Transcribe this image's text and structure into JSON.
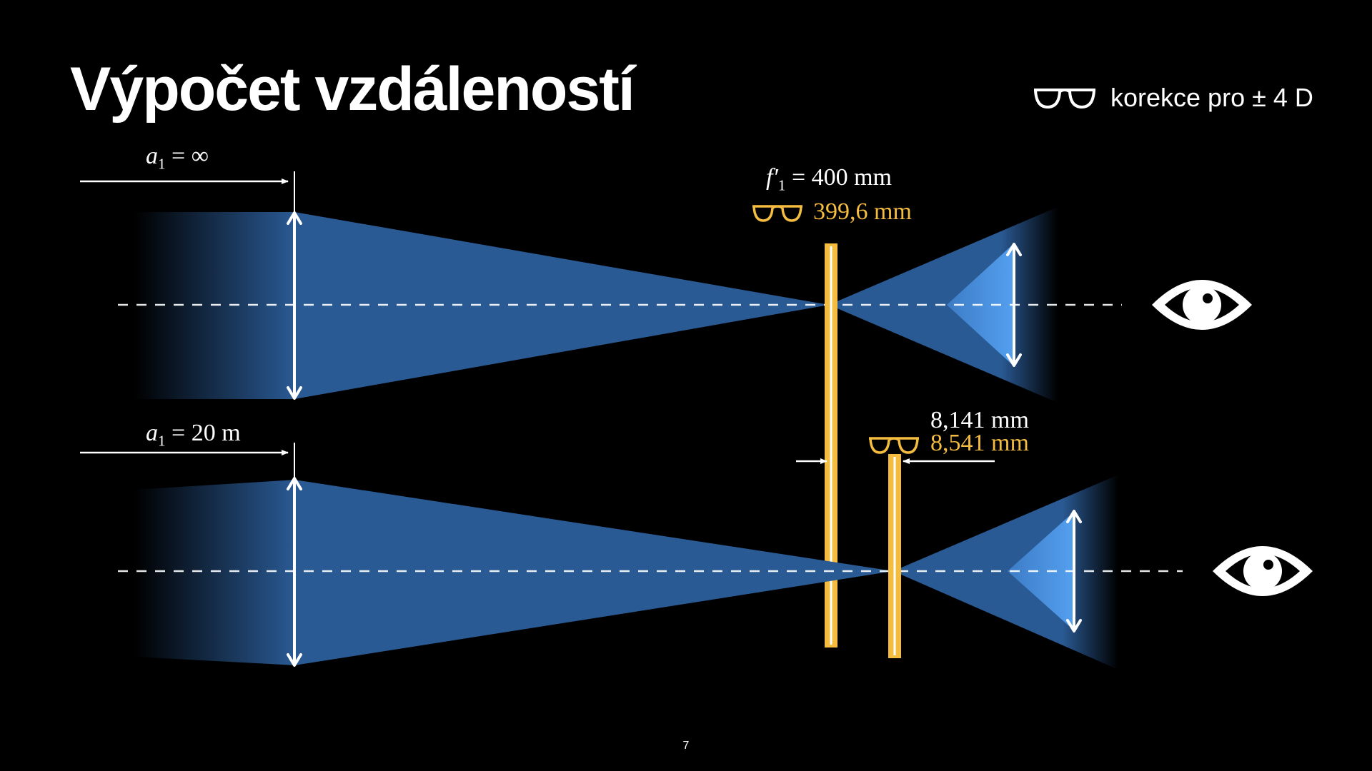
{
  "title": "Výpočet vzdáleností",
  "correction_label": "korekce pro ± 4 D",
  "top": {
    "a_symbol": "a",
    "a_sub": "1",
    "a_value": "= ∞",
    "f_symbol": "f′",
    "f_sub": "1",
    "f_value": "= 400 mm",
    "f_corrected": "399,6 mm"
  },
  "bottom": {
    "a_symbol": "a",
    "a_sub": "1",
    "a_value": "= 20 m",
    "shift_value": "8,141 mm",
    "shift_corrected": "8,541 mm"
  },
  "page_number": "7",
  "colors": {
    "background": "#000000",
    "beam": "#2a5a94",
    "beam_light": "#4a90e0",
    "sensor": "#f5bd3f",
    "text": "#ffffff"
  },
  "icons": [
    "glasses-icon",
    "eye-icon"
  ]
}
